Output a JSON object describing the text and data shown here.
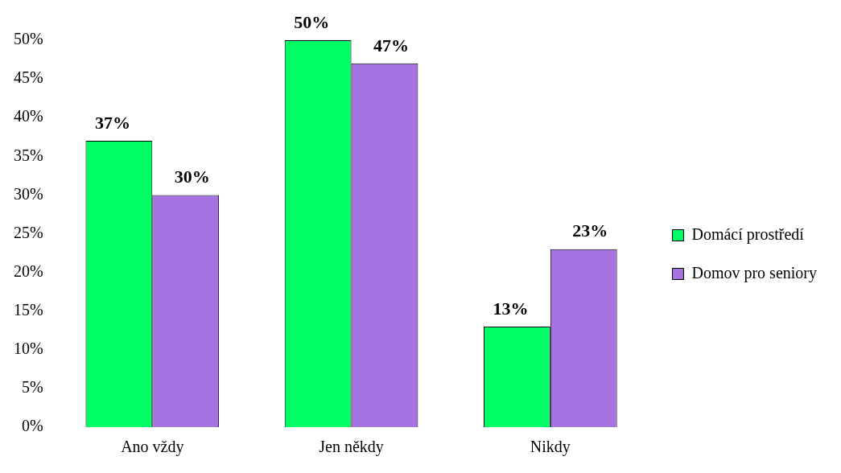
{
  "chart_data": {
    "type": "bar",
    "categories": [
      "Ano vždy",
      "Jen někdy",
      "Nikdy"
    ],
    "series": [
      {
        "name": "Domácí prostředí",
        "color": "#00ff66",
        "values": [
          37,
          50,
          13
        ]
      },
      {
        "name": "Domov pro seniory",
        "color": "#a673e0",
        "values": [
          30,
          47,
          23
        ]
      }
    ],
    "ylim": [
      0,
      50
    ],
    "yticks": [
      {
        "value": 0,
        "label": "0%"
      },
      {
        "value": 5,
        "label": "5%"
      },
      {
        "value": 10,
        "label": "10%"
      },
      {
        "value": 15,
        "label": "15%"
      },
      {
        "value": 20,
        "label": "20%"
      },
      {
        "value": 25,
        "label": "25%"
      },
      {
        "value": 30,
        "label": "30%"
      },
      {
        "value": 35,
        "label": "35%"
      },
      {
        "value": 40,
        "label": "40%"
      },
      {
        "value": 45,
        "label": "45%"
      },
      {
        "value": 50,
        "label": "50%"
      }
    ],
    "value_labels": [
      [
        "37%",
        "50%",
        "13%"
      ],
      [
        "30%",
        "47%",
        "23%"
      ]
    ],
    "grid": false,
    "legend": "right"
  }
}
